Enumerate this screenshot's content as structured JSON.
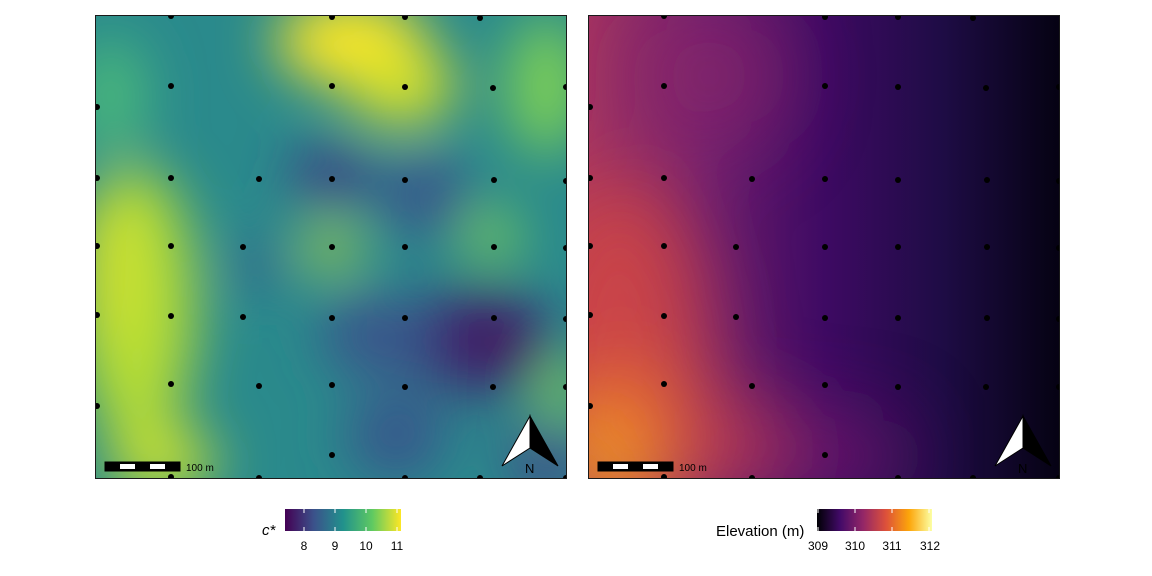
{
  "panels": [
    {
      "id": "c-star",
      "scalebar_label": "100 m",
      "north_label": "N",
      "legend": {
        "title": "c*",
        "ticks": [
          "8",
          "9",
          "10",
          "11"
        ],
        "colors": [
          "#440154",
          "#3b528b",
          "#21918c",
          "#5ec962",
          "#fde725"
        ]
      }
    },
    {
      "id": "elevation",
      "scalebar_label": "100 m",
      "north_label": "N",
      "legend": {
        "title": "Elevation (m)",
        "ticks": [
          "309",
          "310",
          "311",
          "312"
        ],
        "colors": [
          "#000004",
          "#420a68",
          "#932667",
          "#dd513a",
          "#fca50a",
          "#fcffa4"
        ]
      }
    }
  ]
}
